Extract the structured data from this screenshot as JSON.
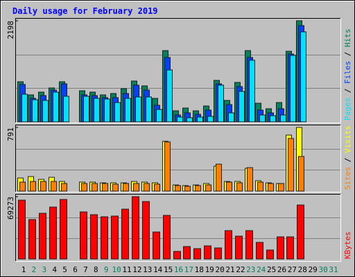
{
  "title": "Daily usage for February 2019",
  "legend_separator": " / ",
  "chart_data": [
    {
      "type": "bar",
      "ylim": [
        0,
        2198
      ],
      "yticks": [
        2198
      ],
      "series": [
        {
          "name": "Hits",
          "color": "#00805c",
          "values": [
            873,
            587,
            647,
            738,
            873,
            null,
            677,
            647,
            587,
            617,
            723,
            888,
            783,
            512,
            1550,
            241,
            301,
            241,
            346,
            903,
            467,
            858,
            1550,
            406,
            286,
            421,
            1535,
            2198,
            null,
            null,
            null
          ]
        },
        {
          "name": "Files",
          "color": "#0040ff",
          "values": [
            814,
            512,
            572,
            692,
            828,
            null,
            587,
            572,
            527,
            527,
            617,
            798,
            692,
            361,
            1400,
            150,
            196,
            165,
            256,
            828,
            376,
            768,
            1400,
            256,
            196,
            286,
            1475,
            2093,
            null,
            null,
            null
          ]
        },
        {
          "name": "Pages",
          "color": "#00e0ff",
          "values": [
            602,
            482,
            467,
            647,
            557,
            null,
            557,
            512,
            497,
            421,
            512,
            542,
            542,
            271,
            1129,
            105,
            90,
            105,
            120,
            798,
            196,
            663,
            1340,
            150,
            135,
            150,
            1445,
            1957,
            null,
            null,
            null
          ]
        }
      ]
    },
    {
      "type": "bar",
      "ylim": [
        0,
        791
      ],
      "yticks": [
        791
      ],
      "series": [
        {
          "name": "Visits",
          "color": "#ffff00",
          "values": [
            163,
            181,
            146,
            172,
            120,
            null,
            112,
            112,
            103,
            103,
            103,
            120,
            112,
            103,
            619,
            77,
            69,
            77,
            95,
            310,
            120,
            120,
            284,
            129,
            103,
            95,
            696,
            791,
            null,
            null,
            null
          ]
        },
        {
          "name": "Sites",
          "color": "#ff8000",
          "values": [
            112,
            120,
            120,
            120,
            95,
            null,
            95,
            95,
            95,
            86,
            95,
            95,
            95,
            86,
            611,
            69,
            60,
            69,
            77,
            335,
            112,
            103,
            292,
            112,
            95,
            95,
            654,
            430,
            null,
            null,
            null
          ]
        }
      ]
    },
    {
      "type": "bar",
      "ylim": [
        0,
        69273
      ],
      "yticks": [
        69273
      ],
      "categories": [
        "1",
        "2",
        "3",
        "4",
        "5",
        "6",
        "7",
        "8",
        "9",
        "10",
        "11",
        "12",
        "13",
        "14",
        "15",
        "16",
        "17",
        "18",
        "19",
        "20",
        "21",
        "22",
        "23",
        "24",
        "25",
        "26",
        "27",
        "28",
        "29",
        "30",
        "31"
      ],
      "category_colors": [
        "#000000",
        "#00805c",
        "#00805c",
        "#000000",
        "#000000",
        "#000000",
        "#000000",
        "#000000",
        "#00805c",
        "#00805c",
        "#000000",
        "#000000",
        "#000000",
        "#000000",
        "#000000",
        "#00805c",
        "#00805c",
        "#000000",
        "#000000",
        "#000000",
        "#000000",
        "#000000",
        "#00805c",
        "#00805c",
        "#000000",
        "#000000",
        "#000000",
        "#000000",
        "#000000",
        "#00805c",
        "#00805c"
      ],
      "series": [
        {
          "name": "KBytes",
          "color": "#ff0000",
          "values": [
            65420,
            43870,
            50800,
            57730,
            66190,
            null,
            52340,
            49260,
            46950,
            47720,
            55420,
            69273,
            63880,
            30020,
            48490,
            8470,
            13850,
            11550,
            14620,
            12320,
            31560,
            25400,
            31560,
            18470,
            10010,
            24630,
            24630,
            60040,
            null,
            null,
            null
          ]
        }
      ]
    }
  ]
}
